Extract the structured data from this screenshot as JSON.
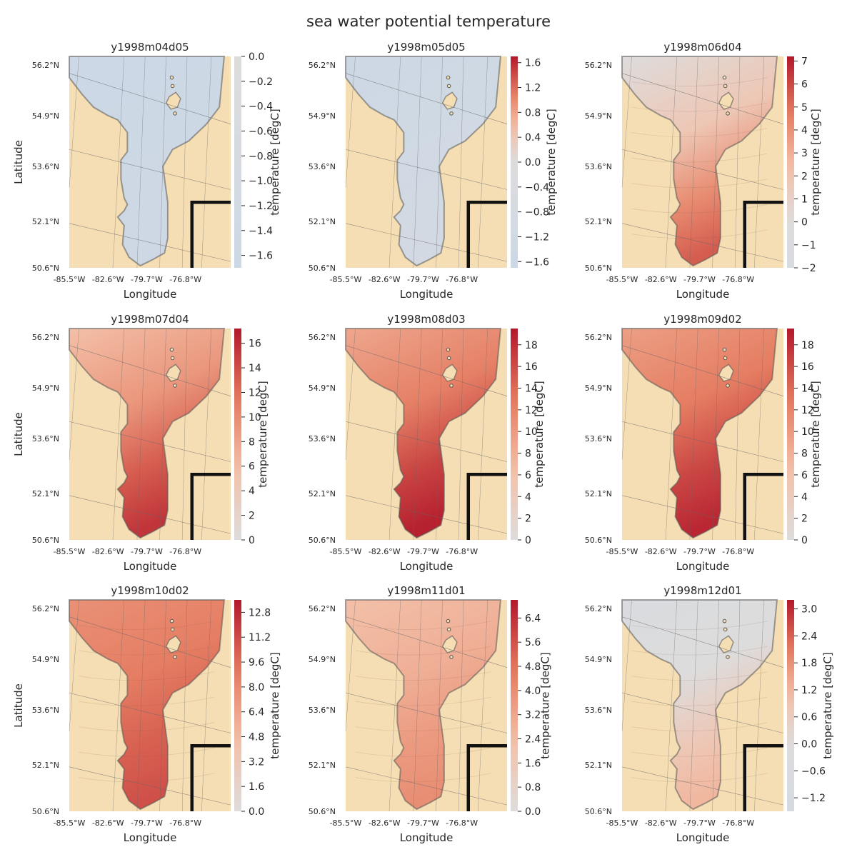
{
  "figure": {
    "title": "sea water potential temperature"
  },
  "colors": {
    "land": "#f5deb3",
    "cold": "#ccd8e6",
    "neutral": "#dddcdc",
    "warm_light": "#f3c0a8",
    "warm_mid": "#e47a5f",
    "warm_dark": "#b2182b",
    "coast": "#555555",
    "box": "#111111",
    "grid": "#666666"
  },
  "chart_data": [
    {
      "type": "heatmap",
      "title": "y1998m04d05",
      "xlabel": "Longitude",
      "ylabel": "Latitude",
      "colorbar_label": "temperature [degC]",
      "xticks": [
        "-85.5°W",
        "-82.6°W",
        "-79.7°W",
        "-76.8°W"
      ],
      "yticks": [
        "56.2°N",
        "54.9°N",
        "53.6°N",
        "52.1°N",
        "50.6°N"
      ],
      "cbar_ticks": [
        "0.0",
        "−0.2",
        "−0.4",
        "−0.6",
        "−0.8",
        "−1.0",
        "−1.2",
        "−1.4",
        "−1.6"
      ],
      "cbar_range": [
        -1.7,
        0.0
      ],
      "value_range": [
        -1.7,
        -1.5
      ],
      "contours": false
    },
    {
      "type": "heatmap",
      "title": "y1998m05d05",
      "xlabel": "Longitude",
      "ylabel": "",
      "colorbar_label": "temperature [degC]",
      "xticks": [
        "-85.5°W",
        "-82.6°W",
        "-79.7°W",
        "-76.8°W"
      ],
      "yticks": [
        "56.2°N",
        "54.9°N",
        "53.6°N",
        "52.1°N",
        "50.6°N"
      ],
      "cbar_ticks": [
        "1.6",
        "1.2",
        "0.8",
        "0.4",
        "0.0",
        "−0.4",
        "−0.8",
        "−1.2",
        "−1.6"
      ],
      "cbar_range": [
        -1.7,
        1.7
      ],
      "value_range": [
        -1.6,
        -1.1
      ],
      "contours": false
    },
    {
      "type": "heatmap",
      "title": "y1998m06d04",
      "xlabel": "Longitude",
      "ylabel": "",
      "colorbar_label": "temperature [degC]",
      "xticks": [
        "-85.5°W",
        "-82.6°W",
        "-79.7°W",
        "-76.8°W"
      ],
      "yticks": [
        "56.2°N",
        "54.9°N",
        "53.6°N",
        "52.1°N",
        "50.6°N"
      ],
      "cbar_ticks": [
        "7",
        "6",
        "5",
        "4",
        "3",
        "2",
        "1",
        "0",
        "−1",
        "−2"
      ],
      "cbar_range": [
        -2.0,
        7.2
      ],
      "value_range": [
        -1.2,
        5.5
      ],
      "contours": true
    },
    {
      "type": "heatmap",
      "title": "y1998m07d04",
      "xlabel": "Longitude",
      "ylabel": "Latitude",
      "colorbar_label": "temperature [degC]",
      "xticks": [
        "-85.5°W",
        "-82.6°W",
        "-79.7°W",
        "-76.8°W"
      ],
      "yticks": [
        "56.2°N",
        "54.9°N",
        "53.6°N",
        "52.1°N",
        "50.6°N"
      ],
      "cbar_ticks": [
        "16",
        "14",
        "12",
        "10",
        "8",
        "6",
        "4",
        "2",
        "0"
      ],
      "cbar_range": [
        0.0,
        17.2
      ],
      "value_range": [
        4.0,
        15.5
      ],
      "contours": false
    },
    {
      "type": "heatmap",
      "title": "y1998m08d03",
      "xlabel": "Longitude",
      "ylabel": "",
      "colorbar_label": "temperature [degC]",
      "xticks": [
        "-85.5°W",
        "-82.6°W",
        "-79.7°W",
        "-76.8°W"
      ],
      "yticks": [
        "56.2°N",
        "54.9°N",
        "53.6°N",
        "52.1°N",
        "50.6°N"
      ],
      "cbar_ticks": [
        "18",
        "16",
        "14",
        "12",
        "10",
        "8",
        "6",
        "4",
        "2",
        "0"
      ],
      "cbar_range": [
        0.0,
        19.5
      ],
      "value_range": [
        7.0,
        19.0
      ],
      "contours": false
    },
    {
      "type": "heatmap",
      "title": "y1998m09d02",
      "xlabel": "Longitude",
      "ylabel": "",
      "colorbar_label": "temperature [degC]",
      "xticks": [
        "-85.5°W",
        "-82.6°W",
        "-79.7°W",
        "-76.8°W"
      ],
      "yticks": [
        "56.2°N",
        "54.9°N",
        "53.6°N",
        "52.1°N",
        "50.6°N"
      ],
      "cbar_ticks": [
        "18",
        "16",
        "14",
        "12",
        "10",
        "8",
        "6",
        "4",
        "2",
        "0"
      ],
      "cbar_range": [
        0.0,
        19.5
      ],
      "value_range": [
        8.0,
        18.5
      ],
      "contours": false
    },
    {
      "type": "heatmap",
      "title": "y1998m10d02",
      "xlabel": "Longitude",
      "ylabel": "Latitude",
      "colorbar_label": "temperature [degC]",
      "xticks": [
        "-85.5°W",
        "-82.6°W",
        "-79.7°W",
        "-76.8°W"
      ],
      "yticks": [
        "56.2°N",
        "54.9°N",
        "53.6°N",
        "52.1°N",
        "50.6°N"
      ],
      "cbar_ticks": [
        "12.8",
        "11.2",
        "9.6",
        "8.0",
        "6.4",
        "4.8",
        "3.2",
        "1.6",
        "0.0"
      ],
      "cbar_range": [
        0.0,
        13.6
      ],
      "value_range": [
        7.0,
        11.0
      ],
      "contours": true
    },
    {
      "type": "heatmap",
      "title": "y1998m11d01",
      "xlabel": "Longitude",
      "ylabel": "",
      "colorbar_label": "temperature [degC]",
      "xticks": [
        "-85.5°W",
        "-82.6°W",
        "-79.7°W",
        "-76.8°W"
      ],
      "yticks": [
        "56.2°N",
        "54.9°N",
        "53.6°N",
        "52.1°N",
        "50.6°N"
      ],
      "cbar_ticks": [
        "6.4",
        "5.6",
        "4.8",
        "4.0",
        "3.2",
        "2.4",
        "1.6",
        "0.8",
        "0.0"
      ],
      "cbar_range": [
        0.0,
        7.0
      ],
      "value_range": [
        2.0,
        4.0
      ],
      "contours": true
    },
    {
      "type": "heatmap",
      "title": "y1998m12d01",
      "xlabel": "Longitude",
      "ylabel": "",
      "colorbar_label": "temperature [degC]",
      "xticks": [
        "-85.5°W",
        "-82.6°W",
        "-79.7°W",
        "-76.8°W"
      ],
      "yticks": [
        "56.2°N",
        "54.9°N",
        "53.6°N",
        "52.1°N",
        "50.6°N"
      ],
      "cbar_ticks": [
        "3.0",
        "2.4",
        "1.8",
        "1.2",
        "0.6",
        "0.0",
        "−0.6",
        "−1.2"
      ],
      "cbar_range": [
        -1.5,
        3.2
      ],
      "value_range": [
        -1.0,
        1.2
      ],
      "contours": true
    }
  ]
}
